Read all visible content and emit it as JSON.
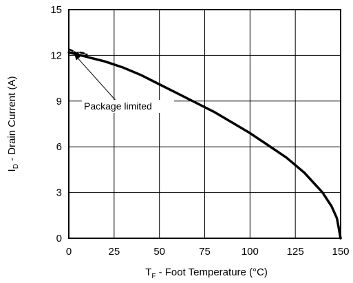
{
  "chart_data": {
    "type": "line",
    "x_axis": {
      "label_main": "T",
      "label_sub": "F",
      "label_rest": " - Foot Temperature (°C)",
      "ticks": [
        0,
        25,
        50,
        75,
        100,
        125,
        150
      ],
      "range": [
        0,
        150
      ]
    },
    "y_axis": {
      "label_main": "I",
      "label_sub": "D",
      "label_rest": " - Drain Current (A)",
      "ticks": [
        0,
        3,
        6,
        9,
        12,
        15
      ],
      "range": [
        0,
        15
      ]
    },
    "grid": true,
    "series": [
      {
        "style": "solid",
        "points": [
          [
            0,
            12.2
          ],
          [
            10,
            11.9
          ],
          [
            20,
            11.6
          ],
          [
            30,
            11.2
          ],
          [
            40,
            10.7
          ],
          [
            50,
            10.1
          ],
          [
            60,
            9.5
          ],
          [
            70,
            8.9
          ],
          [
            80,
            8.3
          ],
          [
            90,
            7.6
          ],
          [
            100,
            6.9
          ],
          [
            110,
            6.1
          ],
          [
            120,
            5.3
          ],
          [
            130,
            4.3
          ],
          [
            140,
            3.0
          ],
          [
            145,
            2.1
          ],
          [
            148,
            1.3
          ],
          [
            150,
            0.0
          ]
        ]
      },
      {
        "style": "dashed",
        "points": [
          [
            0,
            12.4
          ],
          [
            2,
            12.3
          ],
          [
            4,
            12.15
          ],
          [
            6,
            12.2
          ],
          [
            8,
            12.15
          ],
          [
            10,
            12.05
          ]
        ]
      }
    ],
    "annotation": {
      "text": "Package limited",
      "points_to": [
        3,
        12.1
      ]
    }
  }
}
